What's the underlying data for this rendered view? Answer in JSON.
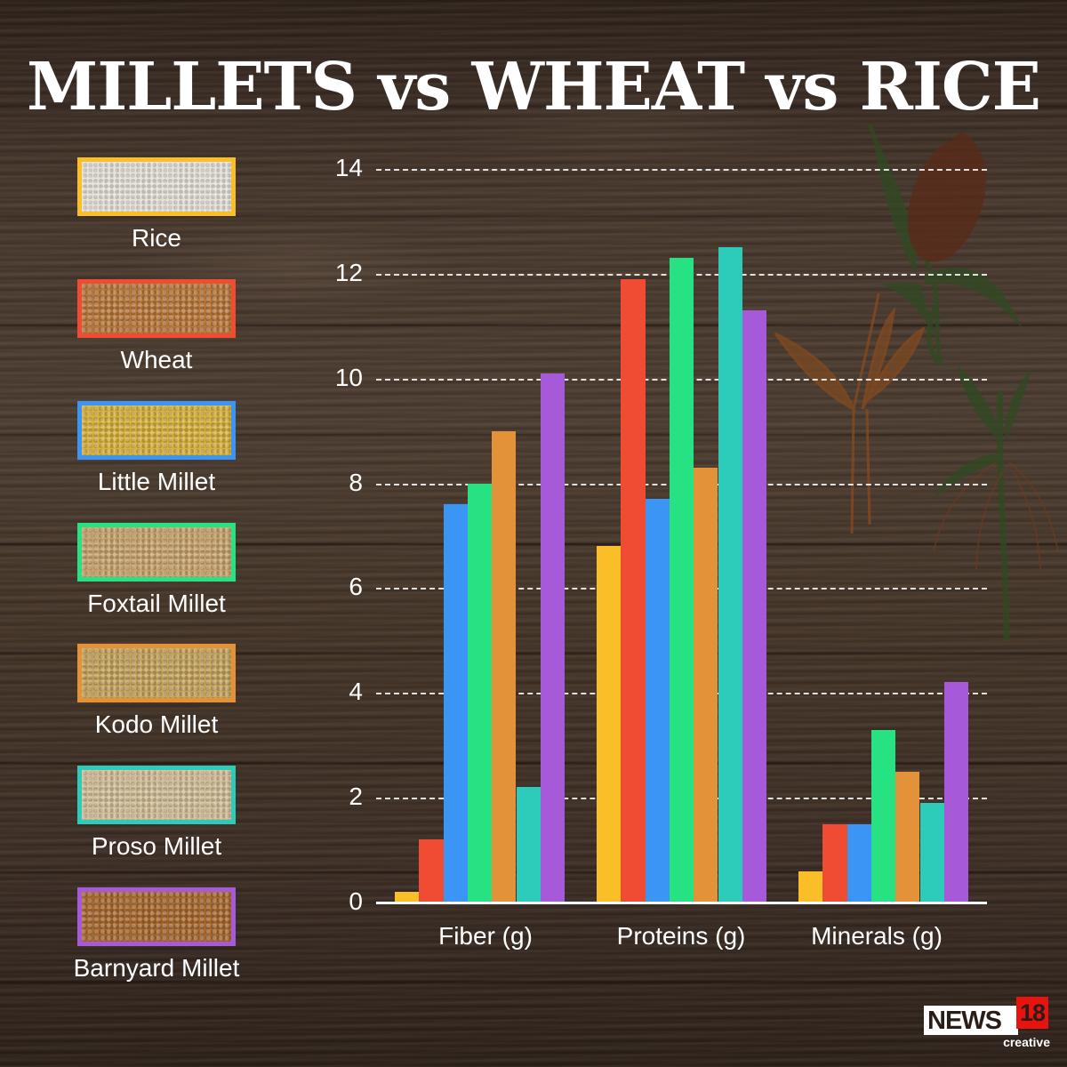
{
  "title": "MILLETS vs WHEAT vs RICE",
  "legend": {
    "items": [
      {
        "label": "Rice",
        "color": "#F9BE28",
        "fill": "#e6e2da"
      },
      {
        "label": "Wheat",
        "color": "#F04B33",
        "fill": "#b9783a"
      },
      {
        "label": "Little Millet",
        "color": "#3B95F5",
        "fill": "#d8b23c"
      },
      {
        "label": "Foxtail Millet",
        "color": "#27E283",
        "fill": "#c9a46e"
      },
      {
        "label": "Kodo Millet",
        "color": "#E3923A",
        "fill": "#c6a45c"
      },
      {
        "label": "Proso Millet",
        "color": "#2DCBBA",
        "fill": "#d3bf98"
      },
      {
        "label": "Barnyard Millet",
        "color": "#A659D8",
        "fill": "#a8682e"
      }
    ]
  },
  "chart_data": {
    "type": "bar",
    "title": "MILLETS vs WHEAT vs RICE",
    "xlabel": "",
    "ylabel": "",
    "categories": [
      "Fiber (g)",
      "Proteins (g)",
      "Minerals (g)"
    ],
    "series": [
      {
        "name": "Rice",
        "color": "#F9BE28",
        "values": [
          0.2,
          6.8,
          0.6
        ]
      },
      {
        "name": "Wheat",
        "color": "#F04B33",
        "values": [
          1.2,
          11.9,
          1.5
        ]
      },
      {
        "name": "Little Millet",
        "color": "#3B95F5",
        "values": [
          7.6,
          7.7,
          1.5
        ]
      },
      {
        "name": "Foxtail Millet",
        "color": "#27E283",
        "values": [
          8.0,
          12.3,
          3.3
        ]
      },
      {
        "name": "Kodo Millet",
        "color": "#E3923A",
        "values": [
          9.0,
          8.3,
          2.5
        ]
      },
      {
        "name": "Proso Millet",
        "color": "#2DCBBA",
        "values": [
          2.2,
          12.5,
          1.9
        ]
      },
      {
        "name": "Barnyard Millet",
        "color": "#A659D8",
        "values": [
          10.1,
          11.3,
          4.2
        ]
      }
    ],
    "yticks": [
      "0",
      "2",
      "4",
      "6",
      "8",
      "10",
      "12",
      "14"
    ],
    "ylim": [
      0,
      14
    ],
    "grid": true,
    "legend_position": "left"
  },
  "logo": {
    "news": "NEWS",
    "number": "18",
    "sub": "creative"
  }
}
